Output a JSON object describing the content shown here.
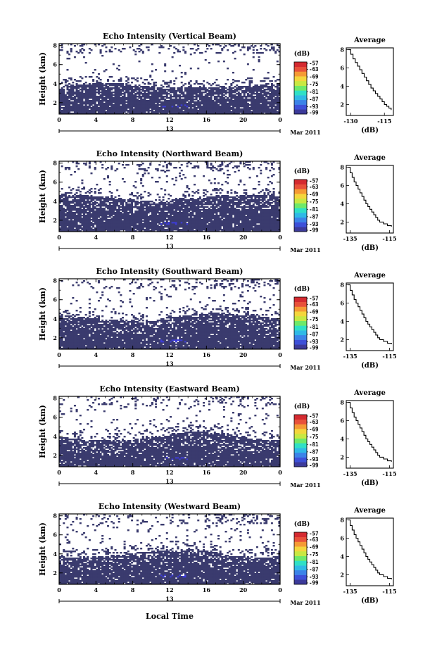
{
  "colors": {
    "echo": "#3a3b6e",
    "echo_strong": "#3d3cd6",
    "colorbar": [
      "#3c3a9a",
      "#3d50d8",
      "#3b83e8",
      "#2fb9e6",
      "#2fe0c6",
      "#6ee96a",
      "#c8e842",
      "#f4d63c",
      "#f59a34",
      "#e8513a",
      "#d42a30"
    ]
  },
  "shared": {
    "date_label": "Mar 2011",
    "day_label": "13",
    "xticks": [
      "0",
      "4",
      "8",
      "12",
      "16",
      "20",
      "0"
    ],
    "yticks": [
      "2",
      "4",
      "6",
      "8"
    ],
    "ylabel": "Height (km)",
    "cb_unit": "(dB)",
    "cb_ticks": [
      "-57",
      "-63",
      "-69",
      "-75",
      "-81",
      "-87",
      "-93",
      "-99"
    ],
    "avg_title": "Average",
    "avg_xlabel": "(dB)",
    "xlabel": "Local Time"
  },
  "chart_data": [
    {
      "type": "heatmap",
      "title": "Echo Intensity (Vertical Beam)",
      "x_unit": "hour",
      "xlim": [
        0,
        24
      ],
      "y_unit": "km",
      "ylim": [
        0.8,
        8.2
      ],
      "colorbar": {
        "unit": "dB",
        "range": [
          -99,
          -57
        ]
      },
      "avg_profile": {
        "title": "Average",
        "xticks": [
          "-130",
          "-115"
        ],
        "x": [
          -131,
          -130,
          -129,
          -128,
          -127,
          -126,
          -125,
          -124,
          -123,
          -122,
          -121,
          -120,
          -119,
          -118,
          -117,
          -116,
          -115,
          -114,
          -113,
          -112
        ],
        "y": [
          8.0,
          7.5,
          7.0,
          6.6,
          6.2,
          5.8,
          5.4,
          5.0,
          4.6,
          4.2,
          3.8,
          3.5,
          3.2,
          2.9,
          2.6,
          2.3,
          2.0,
          1.8,
          1.6,
          1.4
        ]
      }
    },
    {
      "type": "heatmap",
      "title": "Echo Intensity (Northward Beam)",
      "x_unit": "hour",
      "xlim": [
        0,
        24
      ],
      "y_unit": "km",
      "ylim": [
        0.8,
        8.2
      ],
      "colorbar": {
        "unit": "dB",
        "range": [
          -99,
          -57
        ]
      },
      "avg_profile": {
        "title": "Average",
        "xticks": [
          "-135",
          "-115"
        ],
        "x": [
          -136,
          -135,
          -134,
          -133,
          -132,
          -131,
          -130,
          -129,
          -128,
          -127,
          -126,
          -125,
          -124,
          -123,
          -122,
          -121,
          -120,
          -118,
          -116,
          -114
        ],
        "y": [
          8.0,
          7.4,
          6.9,
          6.4,
          6.0,
          5.6,
          5.2,
          4.8,
          4.4,
          4.0,
          3.7,
          3.4,
          3.1,
          2.8,
          2.5,
          2.2,
          2.0,
          1.8,
          1.6,
          1.5
        ]
      }
    },
    {
      "type": "heatmap",
      "title": "Echo Intensity (Southward Beam)",
      "x_unit": "hour",
      "xlim": [
        0,
        24
      ],
      "y_unit": "km",
      "ylim": [
        0.8,
        8.2
      ],
      "colorbar": {
        "unit": "dB",
        "range": [
          -99,
          -57
        ]
      },
      "avg_profile": {
        "title": "Average",
        "xticks": [
          "-135",
          "-115"
        ],
        "x": [
          -136,
          -135,
          -134,
          -133,
          -132,
          -131,
          -130,
          -129,
          -128,
          -127,
          -126,
          -125,
          -124,
          -123,
          -122,
          -121,
          -120,
          -118,
          -116,
          -114
        ],
        "y": [
          8.0,
          7.4,
          6.9,
          6.4,
          6.0,
          5.6,
          5.2,
          4.8,
          4.4,
          4.0,
          3.7,
          3.4,
          3.1,
          2.8,
          2.5,
          2.2,
          2.0,
          1.8,
          1.6,
          1.5
        ]
      }
    },
    {
      "type": "heatmap",
      "title": "Echo Intensity (Eastward Beam)",
      "x_unit": "hour",
      "xlim": [
        0,
        24
      ],
      "y_unit": "km",
      "ylim": [
        0.8,
        8.2
      ],
      "colorbar": {
        "unit": "dB",
        "range": [
          -99,
          -57
        ]
      },
      "avg_profile": {
        "title": "Average",
        "xticks": [
          "-135",
          "-115"
        ],
        "x": [
          -136,
          -135,
          -134,
          -133,
          -132,
          -131,
          -130,
          -129,
          -128,
          -127,
          -126,
          -125,
          -124,
          -123,
          -122,
          -121,
          -120,
          -118,
          -116,
          -114
        ],
        "y": [
          8.0,
          7.4,
          6.9,
          6.4,
          6.0,
          5.6,
          5.2,
          4.8,
          4.4,
          4.0,
          3.7,
          3.4,
          3.1,
          2.8,
          2.5,
          2.2,
          2.0,
          1.8,
          1.6,
          1.5
        ]
      }
    },
    {
      "type": "heatmap",
      "title": "Echo Intensity (Westward Beam)",
      "x_unit": "hour",
      "xlim": [
        0,
        24
      ],
      "y_unit": "km",
      "ylim": [
        0.8,
        8.2
      ],
      "colorbar": {
        "unit": "dB",
        "range": [
          -99,
          -57
        ]
      },
      "avg_profile": {
        "title": "Average",
        "xticks": [
          "-135",
          "-115"
        ],
        "x": [
          -136,
          -135,
          -134,
          -133,
          -132,
          -131,
          -130,
          -129,
          -128,
          -127,
          -126,
          -125,
          -124,
          -123,
          -122,
          -121,
          -120,
          -118,
          -116,
          -114
        ],
        "y": [
          8.0,
          7.4,
          6.9,
          6.4,
          6.0,
          5.6,
          5.2,
          4.8,
          4.4,
          4.0,
          3.7,
          3.4,
          3.1,
          2.8,
          2.5,
          2.2,
          2.0,
          1.8,
          1.6,
          1.5
        ]
      }
    }
  ]
}
